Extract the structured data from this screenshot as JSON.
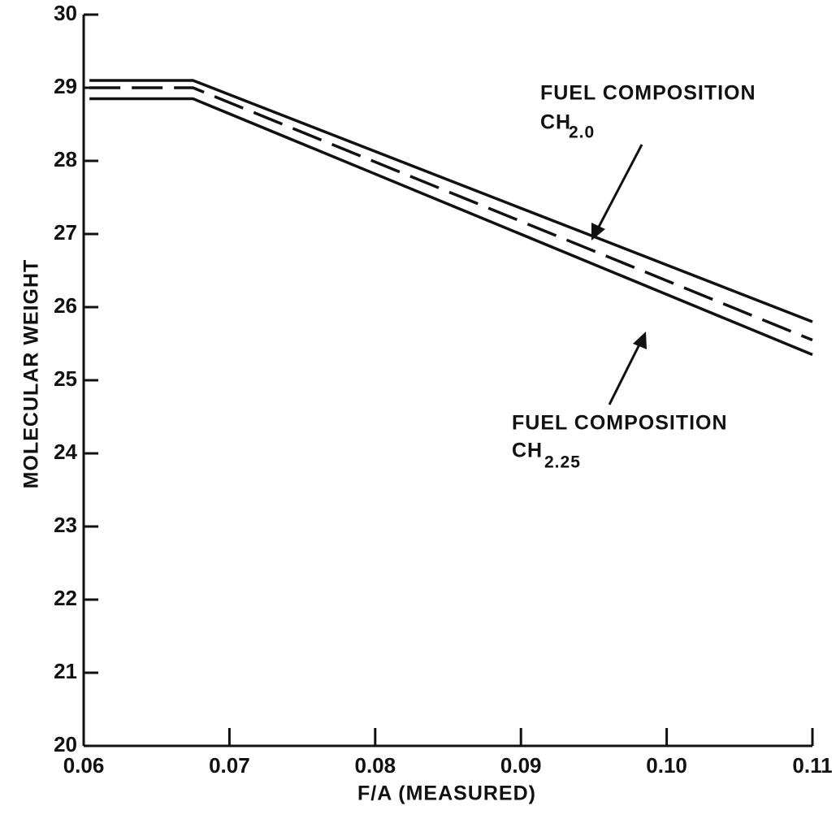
{
  "chart_data": {
    "type": "line",
    "x_label": "F/A (MEASURED)",
    "y_label": "MOLECULAR WEIGHT",
    "xlim": [
      0.06,
      0.11
    ],
    "xticks": [
      0.06,
      0.07,
      0.08,
      0.09,
      {
        "value": 0.1,
        "label": "0.10"
      },
      0.11
    ],
    "ylim": [
      20,
      30
    ],
    "yticks": [
      20,
      21,
      22,
      23,
      24,
      25,
      26,
      27,
      28,
      29,
      30
    ],
    "series": [
      {
        "color": "#111111",
        "dashed": false,
        "x": [
          0.0604,
          0.0675,
          0.11
        ],
        "values": [
          29.1,
          29.1,
          25.8
        ]
      },
      {
        "color": "#111111",
        "dashed": true,
        "x": [
          0.0604,
          0.0675,
          0.11
        ],
        "values": [
          29.0,
          29.0,
          25.55
        ]
      },
      {
        "color": "#111111",
        "dashed": false,
        "x": [
          0.0604,
          0.0675,
          0.11
        ],
        "values": [
          28.85,
          28.85,
          25.35
        ]
      }
    ],
    "annotations": [
      {
        "text": "FUEL COMPOSITION",
        "formula": "CH",
        "subscript": "2.0"
      },
      {
        "text": "FUEL COMPOSITION",
        "formula": "CH",
        "subscript": "2.25"
      }
    ]
  }
}
